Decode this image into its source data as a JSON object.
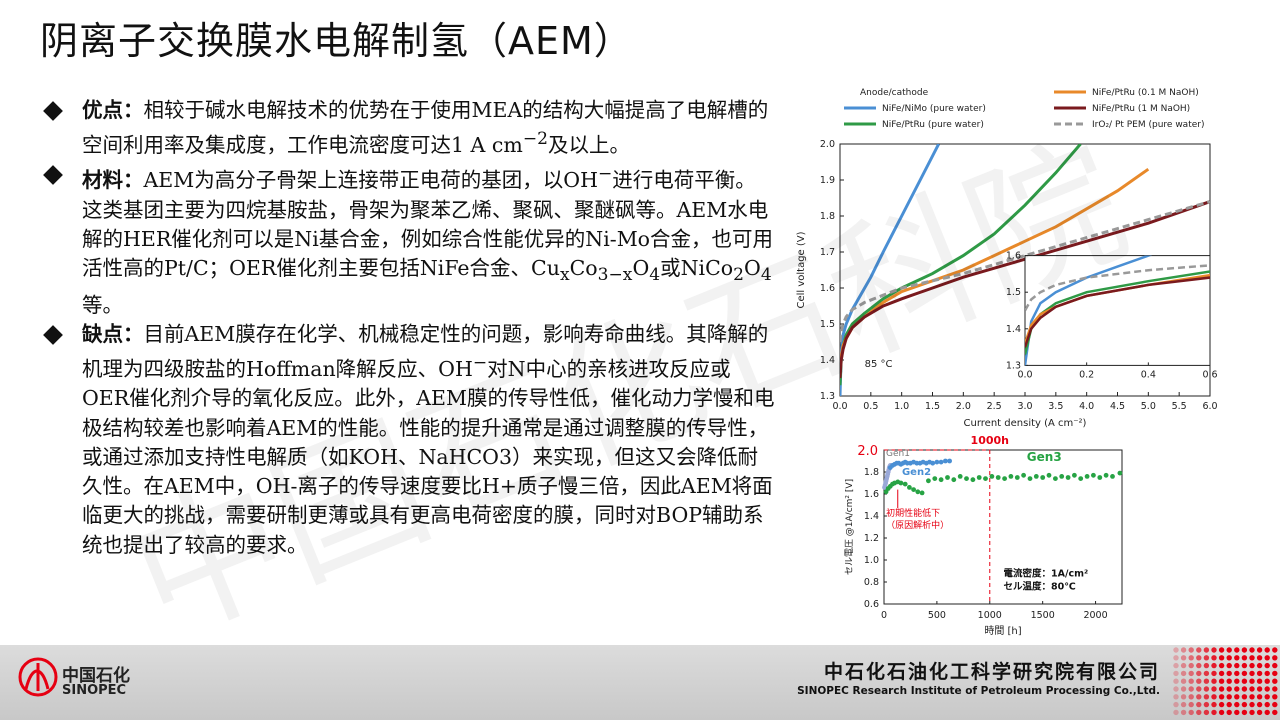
{
  "title": "阴离子交换膜水电解制氢（AEM）",
  "bullets": [
    {
      "label": "优点：",
      "parts": [
        "相较于碱水电解技术的优势在于使用MEA的结构大幅提高了电解槽的空间利用率及集成度，工作电流密度可达1 A cm",
        "−2",
        "及以上。"
      ]
    },
    {
      "label": "材料：",
      "parts": [
        "AEM为高分子骨架上连接带正电荷的基团，以OH",
        "−",
        "进行电荷平衡。这类基团主要为四烷基胺盐，骨架为聚苯乙烯、聚砜、聚醚砜等。AEM水电解的HER催化剂可以是Ni基合金，例如综合性能优异的Ni-Mo合金，也可用活性高的Pt/C；OER催化剂主要包括NiFe合金、Cu",
        "x",
        "Co",
        "3−x",
        "O",
        "4",
        "或NiCo",
        "2",
        "O",
        "4",
        "等。"
      ]
    },
    {
      "label": "缺点：",
      "parts": [
        "目前AEM膜存在化学、机械稳定性的问题，影响寿命曲线。其降解的机理为四级胺盐的Hoffman降解反应、OH",
        "−",
        "对N中心的亲核进攻反应或OER催化剂介导的氧化反应。此外，AEM膜的传导性低，催化动力学慢和电极结构较差也影响着AEM的性能。性能的提升通常是通过调整膜的传导性，或通过添加支持性电解质（如KOH、NaHCO3）来实现，但这又会降低耐久性。在AEM中，OH-离子的传导速度要比H+质子慢三倍，因此AEM将面临更大的挑战，需要研制更薄或具有更高电荷密度的膜，同时对BOP辅助系统也提出了较高的要求。"
      ]
    }
  ],
  "chart_data": [
    {
      "type": "line",
      "legend_title": "Anode/cathode",
      "xlabel": "Current density (A cm⁻²)",
      "ylabel": "Cell voltage (V)",
      "xlim": [
        0,
        6.0
      ],
      "ylim": [
        1.3,
        2.0
      ],
      "xticks": [
        "0.0",
        "0.5",
        "1.0",
        "1.5",
        "2.0",
        "2.5",
        "3.0",
        "3.5",
        "4.0",
        "4.5",
        "5.0",
        "5.5",
        "6.0"
      ],
      "yticks": [
        "1.3",
        "1.4",
        "1.5",
        "1.6",
        "1.7",
        "1.8",
        "1.9",
        "2.0"
      ],
      "annotation": "85 °C",
      "grid": false,
      "series": [
        {
          "name": "NiFe/NiMo (pure water)",
          "color": "#4a8fd4",
          "dash": "",
          "x": [
            0,
            0.02,
            0.05,
            0.1,
            0.2,
            0.3,
            0.5,
            0.7,
            1.0,
            1.3,
            1.6
          ],
          "y": [
            1.3,
            1.42,
            1.47,
            1.5,
            1.54,
            1.57,
            1.63,
            1.7,
            1.8,
            1.9,
            2.0
          ]
        },
        {
          "name": "NiFe/PtRu (pure water)",
          "color": "#2f9a46",
          "dash": "",
          "x": [
            0,
            0.02,
            0.05,
            0.1,
            0.2,
            0.4,
            0.7,
            1.0,
            1.5,
            2.0,
            2.5,
            3.0,
            3.5,
            3.9
          ],
          "y": [
            1.33,
            1.4,
            1.44,
            1.47,
            1.5,
            1.53,
            1.57,
            1.6,
            1.64,
            1.69,
            1.75,
            1.83,
            1.92,
            2.0
          ]
        },
        {
          "name": "NiFe/PtRu (0.1 M NaOH)",
          "color": "#e8892a",
          "dash": "",
          "x": [
            0,
            0.02,
            0.05,
            0.1,
            0.2,
            0.4,
            0.7,
            1.0,
            1.5,
            2.0,
            2.5,
            3.0,
            3.5,
            4.0,
            4.5,
            5.0
          ],
          "y": [
            1.36,
            1.41,
            1.44,
            1.46,
            1.49,
            1.52,
            1.56,
            1.59,
            1.62,
            1.65,
            1.69,
            1.73,
            1.77,
            1.82,
            1.87,
            1.93
          ]
        },
        {
          "name": "NiFe/PtRu (1 M NaOH)",
          "color": "#7a1a1e",
          "dash": "",
          "x": [
            0,
            0.02,
            0.05,
            0.1,
            0.2,
            0.4,
            0.7,
            1.0,
            1.5,
            2.0,
            3.0,
            4.0,
            5.0,
            6.0
          ],
          "y": [
            1.35,
            1.4,
            1.43,
            1.46,
            1.49,
            1.52,
            1.55,
            1.57,
            1.6,
            1.63,
            1.68,
            1.73,
            1.78,
            1.84
          ]
        },
        {
          "name": "IrO₂/ Pt PEM (pure water)",
          "color": "#999999",
          "dash": "7,4",
          "x": [
            0,
            0.02,
            0.05,
            0.1,
            0.2,
            0.4,
            0.7,
            1.0,
            1.5,
            2.0,
            3.0,
            4.0,
            5.0,
            6.0
          ],
          "y": [
            1.45,
            1.48,
            1.5,
            1.52,
            1.54,
            1.56,
            1.58,
            1.6,
            1.62,
            1.64,
            1.69,
            1.74,
            1.79,
            1.84
          ]
        }
      ],
      "inset": {
        "xlim": [
          0,
          0.6
        ],
        "ylim": [
          1.3,
          1.6
        ],
        "xticks": [
          "0.0",
          "0.2",
          "0.4",
          "0.6"
        ],
        "yticks": [
          "1.3",
          "1.4",
          "1.5",
          "1.6"
        ]
      }
    },
    {
      "type": "scatter",
      "xlabel": "時間 [h]",
      "ylabel": "セル電圧 @1A/cm² [V]",
      "xlim": [
        0,
        2250
      ],
      "ylim": [
        0.6,
        2.0
      ],
      "xticks": [
        "0",
        "500",
        "1000",
        "1500",
        "2000"
      ],
      "yticks": [
        "0.6",
        "0.8",
        "1.0",
        "1.2",
        "1.4",
        "1.6",
        "1.8"
      ],
      "ymax_label": "2.0",
      "vline_x": 1000,
      "vline_label": "1000h",
      "annotation_note": "初期性能低下\n（原因解析中）",
      "conditions": [
        "電流密度：1A/cm²",
        "セル温度：80℃"
      ],
      "series": [
        {
          "name": "Gen1",
          "color": "#9aa9d8",
          "x": [
            5,
            10,
            15,
            20,
            25,
            30,
            35,
            40,
            45,
            50,
            55,
            60
          ],
          "y": [
            1.66,
            1.68,
            1.7,
            1.72,
            1.74,
            1.76,
            1.78,
            1.8,
            1.82,
            1.84,
            1.85,
            1.86
          ]
        },
        {
          "name": "Gen2",
          "color": "#4a8fd4",
          "x": [
            60,
            80,
            100,
            120,
            140,
            160,
            180,
            200,
            220,
            250,
            280,
            310,
            340,
            370,
            400,
            430,
            460,
            500,
            540,
            580,
            620
          ],
          "y": [
            1.84,
            1.86,
            1.87,
            1.88,
            1.88,
            1.87,
            1.88,
            1.89,
            1.88,
            1.88,
            1.89,
            1.88,
            1.88,
            1.89,
            1.88,
            1.89,
            1.88,
            1.89,
            1.89,
            1.9,
            1.9
          ]
        },
        {
          "name": "Gen3",
          "color": "#27a344",
          "x": [
            20,
            40,
            60,
            80,
            100,
            130,
            160,
            200,
            240,
            280,
            320,
            360,
            420,
            480,
            540,
            600,
            660,
            720,
            780,
            840,
            900,
            960,
            1020,
            1080,
            1140,
            1200,
            1260,
            1320,
            1380,
            1440,
            1500,
            1560,
            1620,
            1680,
            1740,
            1800,
            1860,
            1920,
            1980,
            2040,
            2100,
            2160,
            2230
          ],
          "y": [
            1.62,
            1.65,
            1.67,
            1.69,
            1.7,
            1.71,
            1.7,
            1.69,
            1.66,
            1.64,
            1.62,
            1.61,
            1.72,
            1.74,
            1.73,
            1.75,
            1.73,
            1.76,
            1.74,
            1.73,
            1.75,
            1.74,
            1.76,
            1.75,
            1.74,
            1.76,
            1.75,
            1.77,
            1.74,
            1.76,
            1.75,
            1.77,
            1.74,
            1.76,
            1.75,
            1.77,
            1.74,
            1.76,
            1.77,
            1.75,
            1.77,
            1.76,
            1.79
          ]
        }
      ]
    }
  ],
  "footer": {
    "logo_cn": "中国石化",
    "logo_en": "SINOPEC",
    "org_cn": "中石化石油化工科学研究院有限公司",
    "org_en": "SINOPEC Research Institute of Petroleum Processing Co.,Ltd.",
    "accent": "#e60012"
  },
  "watermark": "中国石化石科院"
}
